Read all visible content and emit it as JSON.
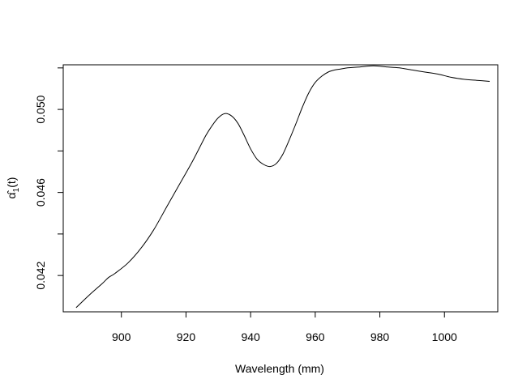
{
  "chart_data": {
    "type": "line",
    "xlabel": "Wavelength (mm)",
    "ylabel": "α̂",
    "ylabel_subscript": "1",
    "ylabel_suffix": "(t)",
    "xlim": [
      882,
      1016.5
    ],
    "ylim": [
      0.04025,
      0.05215
    ],
    "x_ticks": [
      900,
      920,
      940,
      960,
      980,
      1000
    ],
    "x_tick_labels": [
      "900",
      "920",
      "940",
      "960",
      "980",
      "1000"
    ],
    "y_ticks": [
      0.042,
      0.046,
      0.05
    ],
    "y_tick_labels": [
      "0.042",
      "0.046",
      "0.050"
    ],
    "y_minor_ticks": [
      0.044,
      0.048,
      0.052
    ],
    "grid": false,
    "legend": "none",
    "line_color": "#000000",
    "series": [
      {
        "x": [
          886,
          890,
          894,
          896,
          898,
          902,
          906,
          910,
          914,
          918,
          922,
          926,
          928,
          930,
          932,
          934,
          936,
          938,
          940,
          942,
          944,
          946,
          948,
          950,
          952,
          954,
          956,
          958,
          960,
          962,
          964,
          966,
          968,
          970,
          974,
          978,
          982,
          986,
          990,
          994,
          998,
          1002,
          1006,
          1010,
          1014
        ],
        "y": [
          0.04045,
          0.04105,
          0.0416,
          0.0419,
          0.0421,
          0.0426,
          0.0433,
          0.0442,
          0.0453,
          0.0464,
          0.0475,
          0.0487,
          0.0492,
          0.0496,
          0.0498,
          0.0497,
          0.04935,
          0.04875,
          0.0481,
          0.0476,
          0.04735,
          0.04725,
          0.0474,
          0.04785,
          0.04855,
          0.0493,
          0.0501,
          0.0508,
          0.0513,
          0.0516,
          0.0518,
          0.0519,
          0.05195,
          0.052,
          0.05205,
          0.0521,
          0.05205,
          0.052,
          0.0519,
          0.0518,
          0.0517,
          0.05155,
          0.05145,
          0.0514,
          0.05135
        ]
      }
    ]
  }
}
